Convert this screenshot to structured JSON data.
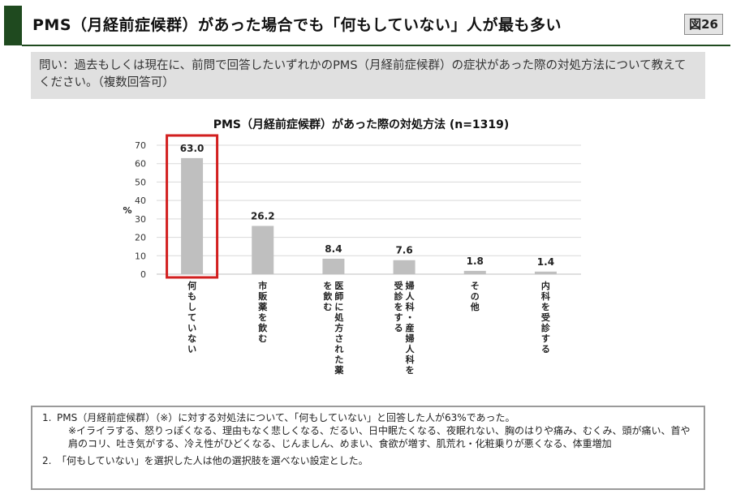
{
  "header": {
    "title": "PMS（月経前症候群）があった場合でも「何もしていない」人が最も多い",
    "figure_label": "図26"
  },
  "question": "問い：過去もしくは現在に、前問で回答したいずれかのPMS（月経前症候群）の症状があった際の対処方法について教えてください。（複数回答可）",
  "chart_data": {
    "type": "bar",
    "title": "PMS（月経前症候群）があった際の対処方法 (n=1319)",
    "categories": [
      "何もしていない",
      "市販薬を飲む",
      "医師に処方された薬を飲む",
      "婦人科・産婦人科を受診をする",
      "その他",
      "内科を受診する"
    ],
    "values": [
      63.0,
      26.2,
      8.4,
      7.6,
      1.8,
      1.4
    ],
    "value_labels": [
      "63.0",
      "26.2",
      "8.4",
      "7.6",
      "1.8",
      "1.4"
    ],
    "ylabel": "%",
    "ylim": [
      0,
      70
    ],
    "yticks": [
      0,
      10,
      20,
      30,
      40,
      50,
      60,
      70
    ],
    "grid": true,
    "highlight_index": 0,
    "bar_color": "#bfbfbf",
    "highlight_color": "#d21f1f"
  },
  "notes": {
    "n1": "PMS（月経前症候群）（※）に対する対処法について、「何もしていない」と回答した人が63%であった。",
    "n1_sub": "※イライラする、怒りっぽくなる、理由もなく悲しくなる、だるい、日中眠たくなる、夜眠れない、胸のはりや痛み、むくみ、頭が痛い、首や肩のコリ、吐き気がする、冷え性がひどくなる、じんましん、めまい、食欲が増す、肌荒れ・化粧乗りが悪くなる、体重増加",
    "n2": "「何もしていない」を選択した人は他の選択肢を選べない設定とした。",
    "num1": "1.",
    "num2": "2."
  }
}
